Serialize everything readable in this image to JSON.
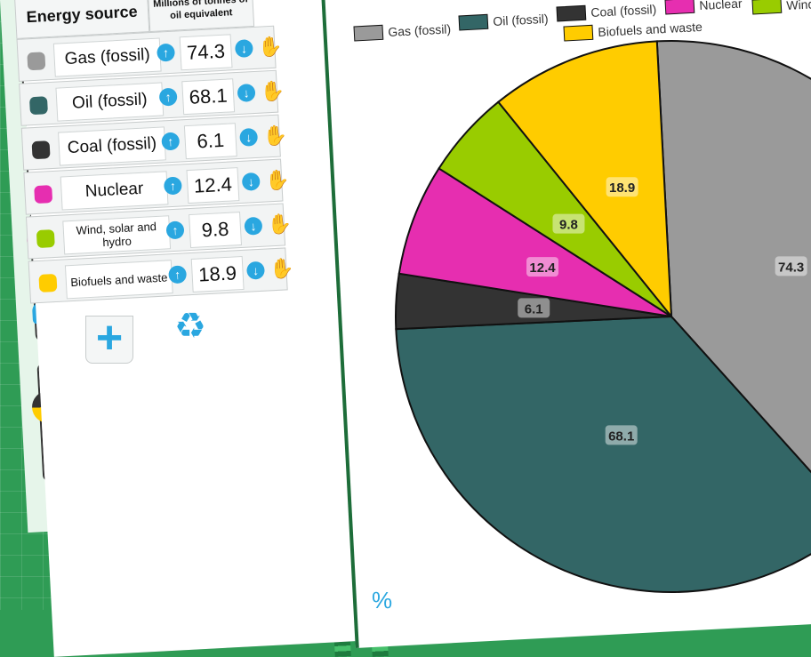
{
  "table": {
    "header_source": "Energy source",
    "header_value": "Millions of tonnes of oil equivalent",
    "sort_icon": "az-sort-icon",
    "rows": [
      {
        "label": "Gas (fossil)",
        "value": "74.3",
        "color": "#9a9a9a"
      },
      {
        "label": "Oil (fossil)",
        "value": "68.1",
        "color": "#336666"
      },
      {
        "label": "Coal (fossil)",
        "value": "6.1",
        "color": "#333333"
      },
      {
        "label": "Nuclear",
        "value": "12.4",
        "color": "#e62eb0"
      },
      {
        "label": "Wind, solar and hydro",
        "value": "9.8",
        "color": "#99cc00"
      },
      {
        "label": "Biofuels and waste",
        "value": "18.9",
        "color": "#ffcc00"
      }
    ]
  },
  "tools": {
    "add_icon": "plus-icon",
    "reset_icon": "recycle-icon",
    "percent_icon": "percent-icon"
  },
  "chart_data": {
    "type": "pie",
    "categories": [
      "Gas (fossil)",
      "Oil (fossil)",
      "Coal (fossil)",
      "Nuclear",
      "Wind, solar and hydro",
      "Biofuels and waste"
    ],
    "values": [
      74.3,
      68.1,
      6.1,
      12.4,
      9.8,
      18.9
    ],
    "colors": [
      "#9a9a9a",
      "#336666",
      "#333333",
      "#e62eb0",
      "#99cc00",
      "#ffcc00"
    ],
    "legend": {
      "placement": "top",
      "entries": [
        "Gas (fossil)",
        "Oil (fossil)",
        "Coal (fossil)",
        "Nuclear",
        "Wind, solar and hydro",
        "Biofuels and waste"
      ]
    }
  }
}
